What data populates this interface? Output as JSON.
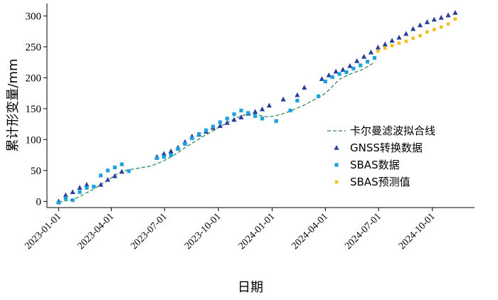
{
  "chart_data": {
    "type": "line",
    "xlabel": "日期",
    "ylabel": "累计形变量/mm",
    "xlim": [
      "2022-12-12",
      "2024-12-12"
    ],
    "ylim": [
      -10,
      320
    ],
    "x_ticks": [
      "2023-01-01",
      "2023-04-01",
      "2023-07-01",
      "2023-10-01",
      "2024-01-01",
      "2024-04-01",
      "2024-07-01",
      "2024-10-01"
    ],
    "y_ticks": [
      0,
      50,
      100,
      150,
      200,
      250,
      300
    ],
    "legend_placement": "center-right",
    "grid": false,
    "series": [
      {
        "name": "卡尔曼滤波拟合线",
        "kind": "dashed-line",
        "color": "#2e8b57",
        "x": [
          "2023-01-01",
          "2023-01-13",
          "2023-01-25",
          "2023-02-06",
          "2023-02-18",
          "2023-03-02",
          "2023-03-14",
          "2023-03-26",
          "2023-04-07",
          "2023-04-19",
          "2023-05-01",
          "2023-05-13",
          "2023-05-25",
          "2023-06-06",
          "2023-06-18",
          "2023-06-30",
          "2023-07-12",
          "2023-07-24",
          "2023-08-05",
          "2023-08-17",
          "2023-08-29",
          "2023-09-10",
          "2023-09-22",
          "2023-10-04",
          "2023-10-16",
          "2023-10-28",
          "2023-11-09",
          "2023-11-21",
          "2023-12-03",
          "2023-12-15",
          "2023-12-27",
          "2024-01-08",
          "2024-01-20",
          "2024-02-01",
          "2024-02-13",
          "2024-02-25",
          "2024-03-08",
          "2024-03-20",
          "2024-04-01",
          "2024-04-13",
          "2024-04-25",
          "2024-05-07",
          "2024-05-19",
          "2024-05-31",
          "2024-06-12",
          "2024-06-24"
        ],
        "y": [
          -1,
          1,
          3,
          8,
          14,
          20,
          27,
          34,
          42,
          48,
          51,
          53,
          55,
          57,
          61,
          66,
          72,
          79,
          87,
          94,
          101,
          108,
          114,
          121,
          127,
          133,
          138,
          141,
          141,
          138,
          137,
          139,
          142,
          146,
          151,
          156,
          162,
          168,
          175,
          186,
          197,
          203,
          208,
          212,
          218,
          225
        ]
      },
      {
        "name": "GNSS转换数据",
        "kind": "triangle",
        "color": "#2a3f9d",
        "x": [
          "2023-01-01",
          "2023-01-13",
          "2023-01-25",
          "2023-02-06",
          "2023-02-18",
          "2023-03-14",
          "2023-03-26",
          "2023-04-07",
          "2023-04-19",
          "2023-06-18",
          "2023-06-30",
          "2023-07-12",
          "2023-07-24",
          "2023-08-05",
          "2023-08-17",
          "2023-08-29",
          "2023-09-10",
          "2023-09-22",
          "2023-10-04",
          "2023-10-16",
          "2023-10-28",
          "2023-11-09",
          "2023-11-21",
          "2023-12-03",
          "2023-12-15",
          "2023-12-27",
          "2024-01-20",
          "2024-02-13",
          "2024-02-25",
          "2024-03-26",
          "2024-04-07",
          "2024-04-19",
          "2024-05-01",
          "2024-05-13",
          "2024-05-25",
          "2024-06-06",
          "2024-06-18",
          "2024-06-30",
          "2024-07-12",
          "2024-07-24",
          "2024-08-05",
          "2024-08-17",
          "2024-08-29",
          "2024-09-10",
          "2024-09-22",
          "2024-10-04",
          "2024-10-16",
          "2024-10-28",
          "2024-11-09"
        ],
        "y": [
          0,
          10,
          15,
          22,
          27,
          27,
          35,
          41,
          48,
          72,
          77,
          81,
          87,
          96,
          105,
          108,
          113,
          119,
          122,
          127,
          132,
          136,
          142,
          145,
          149,
          155,
          165,
          172,
          184,
          198,
          204,
          210,
          213,
          219,
          227,
          234,
          241,
          249,
          254,
          260,
          265,
          271,
          279,
          285,
          290,
          294,
          297,
          301,
          305
        ]
      },
      {
        "name": "SBAS数据",
        "kind": "square",
        "color": "#1aa3e0",
        "x": [
          "2023-01-01",
          "2023-01-13",
          "2023-01-25",
          "2023-02-06",
          "2023-02-18",
          "2023-03-02",
          "2023-03-14",
          "2023-03-26",
          "2023-04-07",
          "2023-04-19",
          "2023-05-01",
          "2023-06-18",
          "2023-06-30",
          "2023-07-12",
          "2023-07-24",
          "2023-08-05",
          "2023-08-17",
          "2023-08-29",
          "2023-09-10",
          "2023-09-22",
          "2023-10-04",
          "2023-10-16",
          "2023-10-28",
          "2023-11-09",
          "2023-11-21",
          "2023-12-03",
          "2023-12-15",
          "2024-01-08",
          "2024-02-01",
          "2024-02-13",
          "2024-03-20",
          "2024-04-01",
          "2024-04-13",
          "2024-04-25",
          "2024-05-07",
          "2024-05-19",
          "2024-05-31",
          "2024-06-12",
          "2024-06-24"
        ],
        "y": [
          -2,
          5,
          2,
          15,
          22,
          24,
          42,
          50,
          55,
          60,
          49,
          70,
          72,
          75,
          85,
          93,
          102,
          109,
          115,
          121,
          128,
          134,
          141,
          147,
          143,
          138,
          134,
          130,
          147,
          163,
          170,
          194,
          201,
          206,
          209,
          215,
          220,
          226,
          232
        ]
      },
      {
        "name": "SBAS预测值",
        "kind": "diamond",
        "color": "#f2c01e",
        "x": [
          "2024-06-30",
          "2024-07-12",
          "2024-07-24",
          "2024-08-05",
          "2024-08-17",
          "2024-08-29",
          "2024-09-10",
          "2024-09-22",
          "2024-10-04",
          "2024-10-16",
          "2024-10-28",
          "2024-11-09"
        ],
        "y": [
          243,
          248,
          252,
          256,
          259,
          264,
          268,
          274,
          278,
          282,
          287,
          295
        ]
      }
    ]
  }
}
